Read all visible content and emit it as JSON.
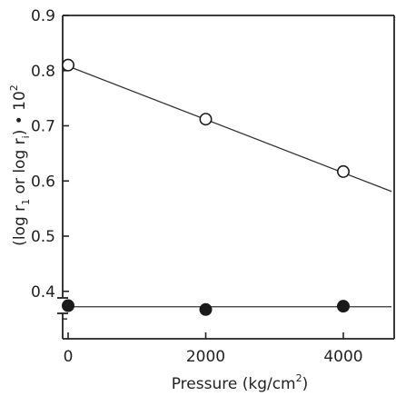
{
  "chart_data": {
    "type": "scatter",
    "xlabel": "Pressure (kg/cm",
    "xlabel_superscript": "2",
    "xlabel_suffix": ")",
    "ylabel": "(log r",
    "ylabel_sub1": "1",
    "ylabel_mid": " or log r",
    "ylabel_sub2": "i",
    "ylabel_end": ") • 10",
    "ylabel_sup": "2",
    "x_ticks": [
      "0",
      "2000",
      "4000"
    ],
    "y_ticks": [
      "0.4",
      "0.5",
      "0.6",
      "0.7",
      "0.8",
      "0.9"
    ],
    "xlim": [
      -40,
      4700
    ],
    "ylim": [
      0.305,
      0.9
    ],
    "y_axis_break": true,
    "grid": false,
    "series": [
      {
        "marker": "open-circle",
        "x": [
          0,
          2000,
          4000
        ],
        "y": [
          0.81,
          0.712,
          0.617
        ],
        "fit_line": {
          "x": [
            0,
            4700
          ],
          "y": [
            0.808,
            0.581
          ]
        }
      },
      {
        "marker": "filled-circle",
        "x": [
          0,
          2000,
          4000
        ],
        "y": [
          0.374,
          0.367,
          0.373
        ],
        "fit_line": {
          "x": [
            0,
            4700
          ],
          "y": [
            0.372,
            0.372
          ]
        }
      }
    ]
  }
}
